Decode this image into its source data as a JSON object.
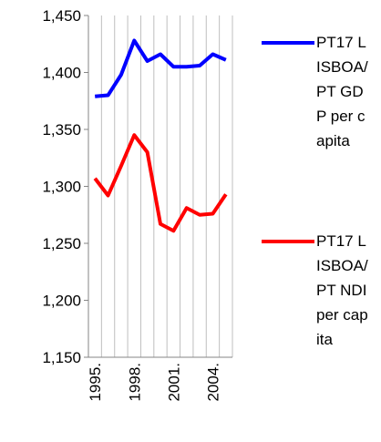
{
  "chart_data": {
    "type": "line",
    "categories": [
      "1995.",
      null,
      null,
      "1998.",
      null,
      null,
      "2001.",
      null,
      null,
      "2004.",
      null
    ],
    "series": [
      {
        "name": "PT17 LISBOA/PT GDP per capita",
        "color": "#0000ff",
        "values": [
          1379,
          1380,
          1398,
          1428,
          1410,
          1416,
          1405,
          1405,
          1406,
          1416,
          1411
        ]
      },
      {
        "name": "PT17 LISBOA/PT NDI per capita",
        "color": "#ff0000",
        "values": [
          1307,
          1292,
          1318,
          1345,
          1330,
          1267,
          1261,
          1281,
          1275,
          1276,
          1293
        ]
      }
    ],
    "ylim": [
      1150,
      1450
    ],
    "yticks": [
      {
        "value": 1150,
        "label": "1,150"
      },
      {
        "value": 1200,
        "label": "1,200"
      },
      {
        "value": 1250,
        "label": "1,250"
      },
      {
        "value": 1300,
        "label": "1,300"
      },
      {
        "value": 1350,
        "label": "1,350"
      },
      {
        "value": 1400,
        "label": "1,400"
      },
      {
        "value": 1450,
        "label": "1,450"
      }
    ],
    "grid": true,
    "legend": "right"
  }
}
